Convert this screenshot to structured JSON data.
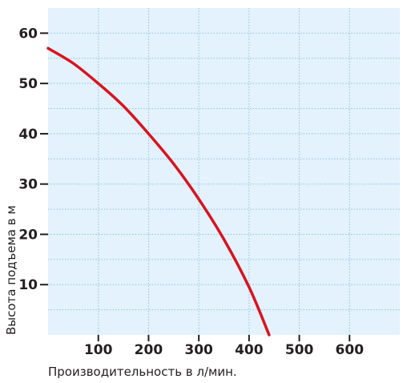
{
  "chart_data": {
    "type": "line",
    "title": "",
    "xlabel": "Производительность в л/мин.",
    "ylabel": "Высота подъема в м",
    "xlim": [
      0,
      700
    ],
    "ylim": [
      0,
      65
    ],
    "x_ticks": [
      100,
      200,
      300,
      400,
      500,
      600
    ],
    "x_tick_labels": [
      "100",
      "200",
      "300",
      "400",
      "500",
      "600"
    ],
    "y_ticks": [
      10,
      20,
      30,
      40,
      50,
      60
    ],
    "y_tick_labels": [
      "10",
      "20",
      "30",
      "40",
      "50",
      "60"
    ],
    "grid": true,
    "colors": {
      "plot_bg": "#e3f2fc",
      "grid": "#8fc3e3",
      "line": "#d7141f",
      "text": "#231f20"
    },
    "series": [
      {
        "name": "",
        "x": [
          0,
          50,
          100,
          150,
          200,
          250,
          300,
          350,
          400,
          440
        ],
        "y": [
          57,
          54,
          50,
          45.5,
          40,
          34,
          27,
          19,
          9.5,
          0
        ]
      }
    ]
  }
}
